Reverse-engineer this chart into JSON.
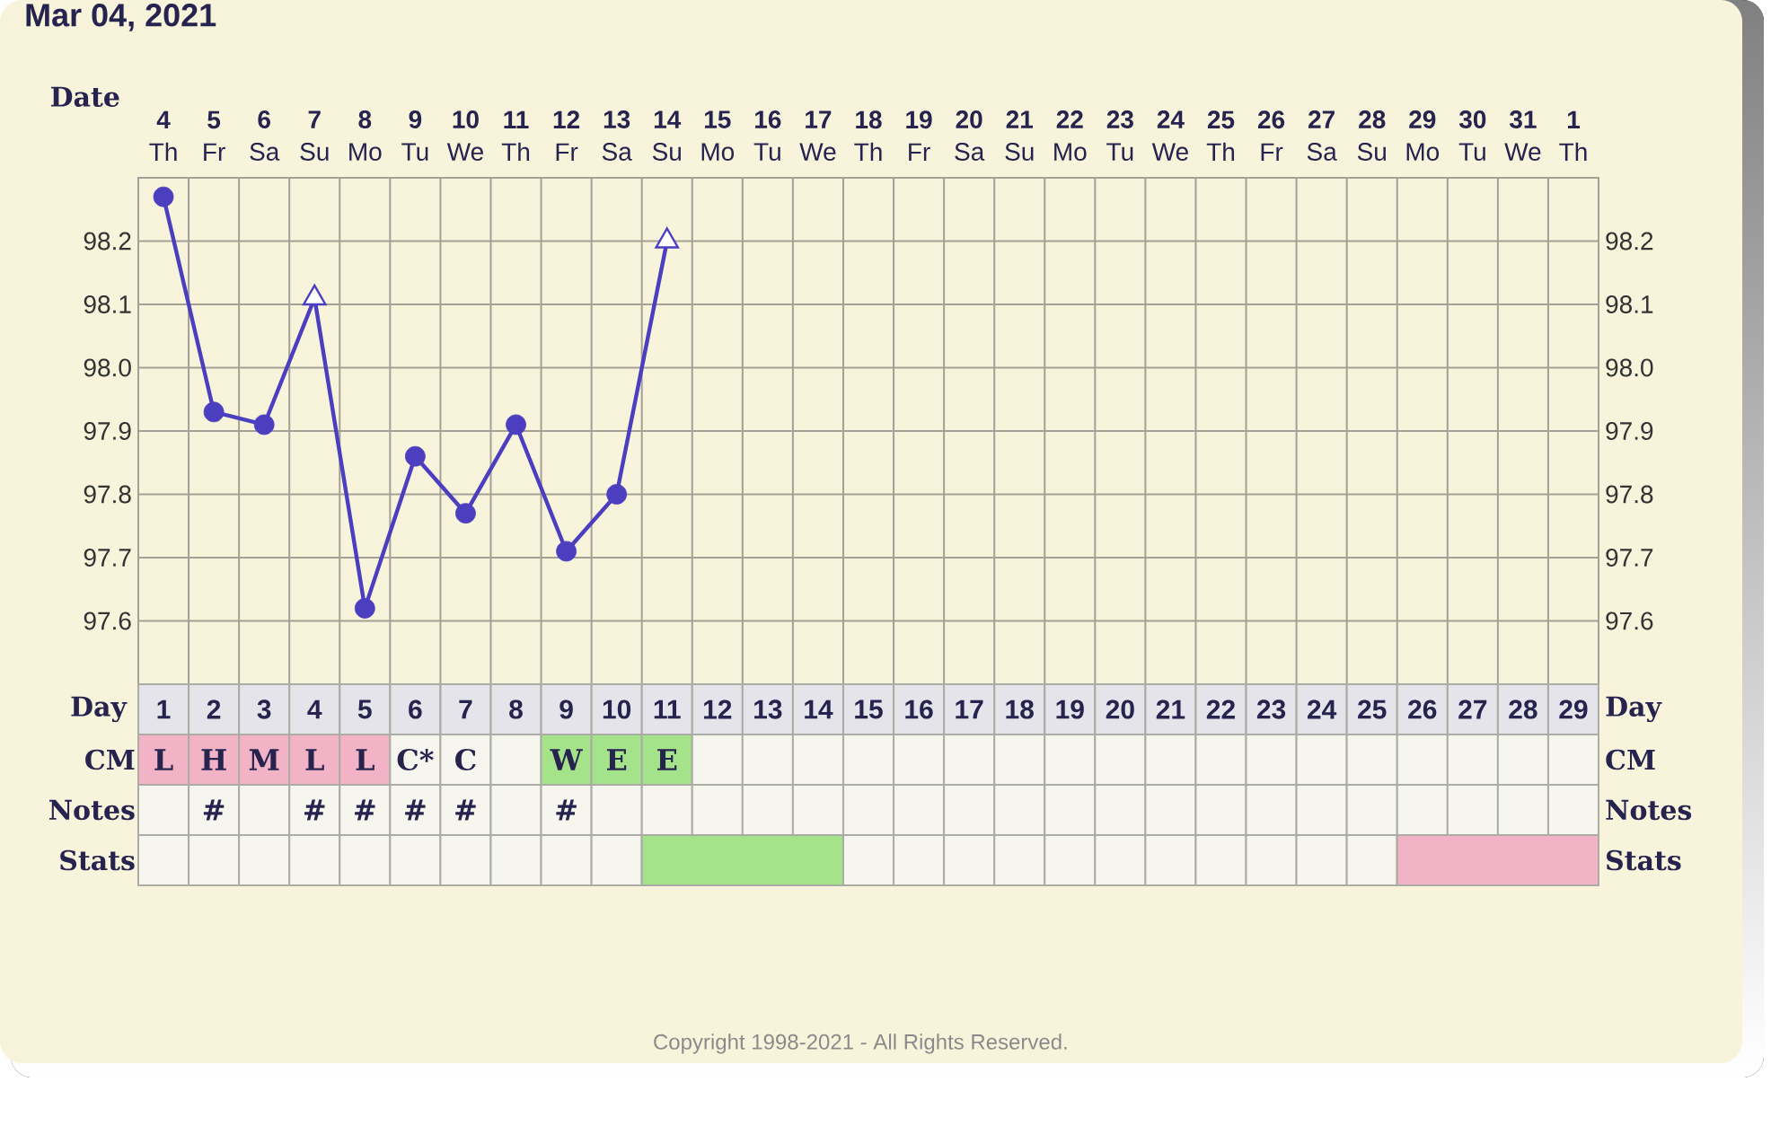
{
  "chart_data": [
    {
      "type": "line",
      "title": "Mar 04, 2021",
      "xlabel": "Date",
      "categories": [
        "**4** Th",
        "**5** Fr",
        "**6** Sa",
        "**7** Su",
        "**8** Mo",
        "**9** Tu",
        "**10** We",
        "**11** Th",
        "**12** Fr",
        "**13** Sa",
        "**14** Su",
        "**15** Mo",
        "**16** Tu",
        "**17** We",
        "**18** Th",
        "**19** Fr",
        "**20** Sa",
        "**21** Su",
        "**22** Mo",
        "**23** Tu",
        "**24** We",
        "**25** Th",
        "**26** Fr",
        "**27** Sa",
        "**28** Su",
        "**29** Mo",
        "**30** Tu",
        "**31** We",
        "**1** Th"
      ],
      "series": [
        {
          "type": "line",
          "marker": "none",
          "color": "#4b3fc0",
          "values": [
            98.27,
            97.93,
            97.91,
            98.11,
            97.62,
            97.86,
            97.77,
            97.91,
            97.71,
            97.8,
            98.2,
            null,
            null,
            null,
            null,
            null,
            null,
            null,
            null,
            null,
            null,
            null,
            null,
            null,
            null,
            null,
            null,
            null,
            null
          ]
        },
        {
          "type": "scatter",
          "marker": "circle",
          "color": "#4b3fc0",
          "values": [
            98.27,
            97.93,
            97.91,
            null,
            97.62,
            97.86,
            97.77,
            97.91,
            97.71,
            97.8,
            null,
            null,
            null,
            null,
            null,
            null,
            null,
            null,
            null,
            null,
            null,
            null,
            null,
            null,
            null,
            null,
            null,
            null,
            null
          ]
        },
        {
          "type": "scatter",
          "marker": "triangle",
          "color": "#4b3fc0",
          "values": [
            null,
            null,
            null,
            98.11,
            null,
            null,
            null,
            null,
            null,
            null,
            98.2,
            null,
            null,
            null,
            null,
            null,
            null,
            null,
            null,
            null,
            null,
            null,
            null,
            null,
            null,
            null,
            null,
            null,
            null
          ]
        }
      ],
      "ylim": [
        97.5,
        98.3
      ],
      "yticks": [
        97.6,
        97.7,
        97.8,
        97.9,
        {
          "value": 98,
          "label": "98.0"
        },
        98.1,
        98.2
      ],
      "y2lim": [
        97.5,
        98.3
      ],
      "y2ticks": [
        97.6,
        97.7,
        97.8,
        97.9,
        {
          "value": 98,
          "label": "98.0"
        },
        98.1,
        98.2
      ],
      "grid": true
    },
    {
      "type": "heatmap",
      "xlabel": "Day",
      "categories": [
        "1",
        "2",
        "3",
        "4",
        "5",
        "6",
        "7",
        "8",
        "9",
        "10",
        "11",
        "12",
        "13",
        "14",
        "15",
        "16",
        "17",
        "18",
        "19",
        "20",
        "21",
        "22",
        "23",
        "24",
        "25",
        "26",
        "27",
        "28",
        "29"
      ],
      "y_categories": [
        "CM",
        "Notes",
        "Stats"
      ],
      "y2_categories": [
        "CM",
        "Notes",
        "Stats"
      ],
      "cells": [
        [
          null,
          null,
          null,
          null,
          null,
          null,
          null,
          null,
          null,
          null,
          null,
          null,
          null,
          null,
          null,
          null,
          null,
          null,
          null,
          null,
          null,
          null,
          null,
          null,
          null,
          null,
          null,
          null,
          null
        ],
        [
          null,
          null,
          null,
          null,
          null,
          null,
          null,
          null,
          null,
          null,
          null,
          null,
          null,
          null,
          null,
          null,
          null,
          null,
          null,
          null,
          null,
          null,
          null,
          null,
          null,
          null,
          null,
          null,
          null
        ],
        [
          null,
          null,
          null,
          null,
          null,
          null,
          null,
          null,
          null,
          null,
          null,
          null,
          null,
          null,
          null,
          null,
          null,
          null,
          null,
          null,
          null,
          null,
          null,
          null,
          null,
          null,
          null,
          null,
          null
        ]
      ],
      "cell_labels": [
        [
          "L",
          "H",
          "M",
          "L",
          "L",
          "C*",
          "C",
          null,
          "W",
          "E",
          "E",
          null,
          null,
          null,
          null,
          null,
          null,
          null,
          null,
          null,
          null,
          null,
          null,
          null,
          null,
          null,
          null,
          null,
          null
        ],
        [
          null,
          "#",
          null,
          "#",
          "#",
          "#",
          "#",
          null,
          "#",
          null,
          null,
          null,
          null,
          null,
          null,
          null,
          null,
          null,
          null,
          null,
          null,
          null,
          null,
          null,
          null,
          null,
          null,
          null,
          null
        ],
        [
          null,
          null,
          null,
          null,
          null,
          null,
          null,
          null,
          null,
          null,
          null,
          null,
          null,
          null,
          null,
          null,
          null,
          null,
          null,
          null,
          null,
          null,
          null,
          null,
          null,
          null,
          null,
          null,
          null
        ]
      ],
      "colors": [
        [
          "#f2b3c6",
          "#f2b3c6",
          "#f2b3c6",
          "#f2b3c6",
          "#f2b3c6",
          null,
          null,
          null,
          "#a4e38a",
          "#a4e38a",
          "#a4e38a",
          null,
          null,
          null,
          null,
          null,
          null,
          null,
          null,
          null,
          null,
          null,
          null,
          null,
          null,
          null,
          null,
          null,
          null
        ],
        [
          null,
          null,
          null,
          null,
          null,
          null,
          null,
          null,
          null,
          null,
          null,
          null,
          null,
          null,
          null,
          null,
          null,
          null,
          null,
          null,
          null,
          null,
          null,
          null,
          null,
          null,
          null,
          null,
          null
        ],
        [
          null,
          null,
          null,
          null,
          null,
          null,
          null,
          null,
          null,
          null,
          null,
          null,
          null,
          null,
          null,
          null,
          null,
          null,
          null,
          null,
          null,
          null,
          null,
          null,
          null,
          null,
          null,
          null,
          null
        ]
      ],
      "bands": [
        {
          "axis": "x",
          "from": "11",
          "to": "14",
          "color": "#a4e38a"
        },
        {
          "axis": "x",
          "from": "26",
          "to": "29",
          "color": "#f2b3c6"
        }
      ],
      "annotations": [
        "Copyright 1998-2021 - All Rights Reserved."
      ]
    }
  ]
}
